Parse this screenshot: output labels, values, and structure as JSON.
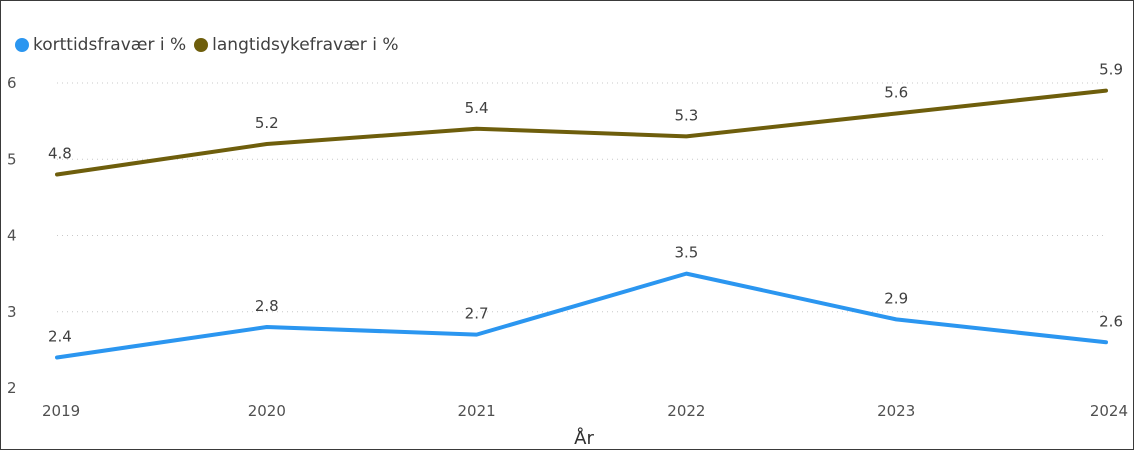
{
  "chart_data": {
    "type": "line",
    "title": "",
    "xlabel": "År",
    "ylabel": "",
    "ylim": [
      2,
      6
    ],
    "yticks": [
      2,
      3,
      4,
      5,
      6
    ],
    "categories": [
      "2019",
      "2020",
      "2021",
      "2022",
      "2023",
      "2024"
    ],
    "grid": true,
    "legend_position": "top-left",
    "series": [
      {
        "name": "korttidsfravær i %",
        "color": "#2b96f0",
        "values": [
          2.4,
          2.8,
          2.7,
          3.5,
          2.9,
          2.6
        ],
        "labels": [
          "2.4",
          "2.8",
          "2.7",
          "3.5",
          "2.9",
          "2.6"
        ]
      },
      {
        "name": "langtidsykefravær i %",
        "color": "#6e5e0c",
        "values": [
          4.8,
          5.2,
          5.4,
          5.3,
          5.6,
          5.9
        ],
        "labels": [
          "4.8",
          "5.2",
          "5.4",
          "5.3",
          "5.6",
          "5.9"
        ]
      }
    ]
  }
}
